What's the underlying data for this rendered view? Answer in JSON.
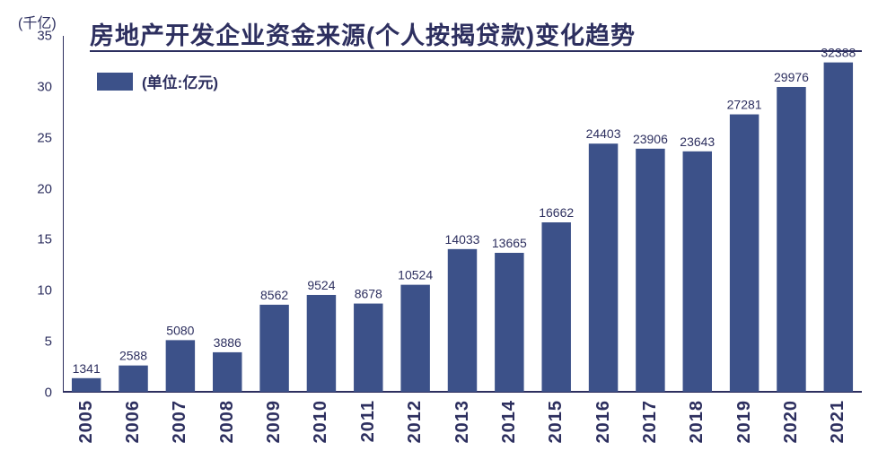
{
  "chart": {
    "type": "bar",
    "y_axis_title": "(千亿)",
    "title": "房地产开发企业资金来源(个人按揭贷款)变化趋势",
    "legend_label": "(单位:亿元)",
    "categories": [
      "2005",
      "2006",
      "2007",
      "2008",
      "2009",
      "2010",
      "2011",
      "2012",
      "2013",
      "2014",
      "2015",
      "2016",
      "2017",
      "2018",
      "2019",
      "2020",
      "2021"
    ],
    "values": [
      1341,
      2588,
      5080,
      3886,
      8562,
      9524,
      8678,
      10524,
      14033,
      13665,
      16662,
      24403,
      23906,
      23643,
      27281,
      29976,
      32388
    ],
    "bar_color": "#3c5189",
    "title_fontsize": 27,
    "label_fontsize": 15,
    "value_label_fontsize": 14,
    "xlabel_fontsize": 20,
    "ylim": [
      0,
      35000
    ],
    "ytick_step": 5000,
    "ytick_labels": [
      "0",
      "5",
      "10",
      "15",
      "20",
      "25",
      "30",
      "35"
    ],
    "background_color": "#ffffff",
    "axis_color": "#2d2f5f",
    "text_color": "#2d2f5f",
    "bar_width_ratio": 0.62,
    "title_underline_color": "#2d2f5f"
  }
}
